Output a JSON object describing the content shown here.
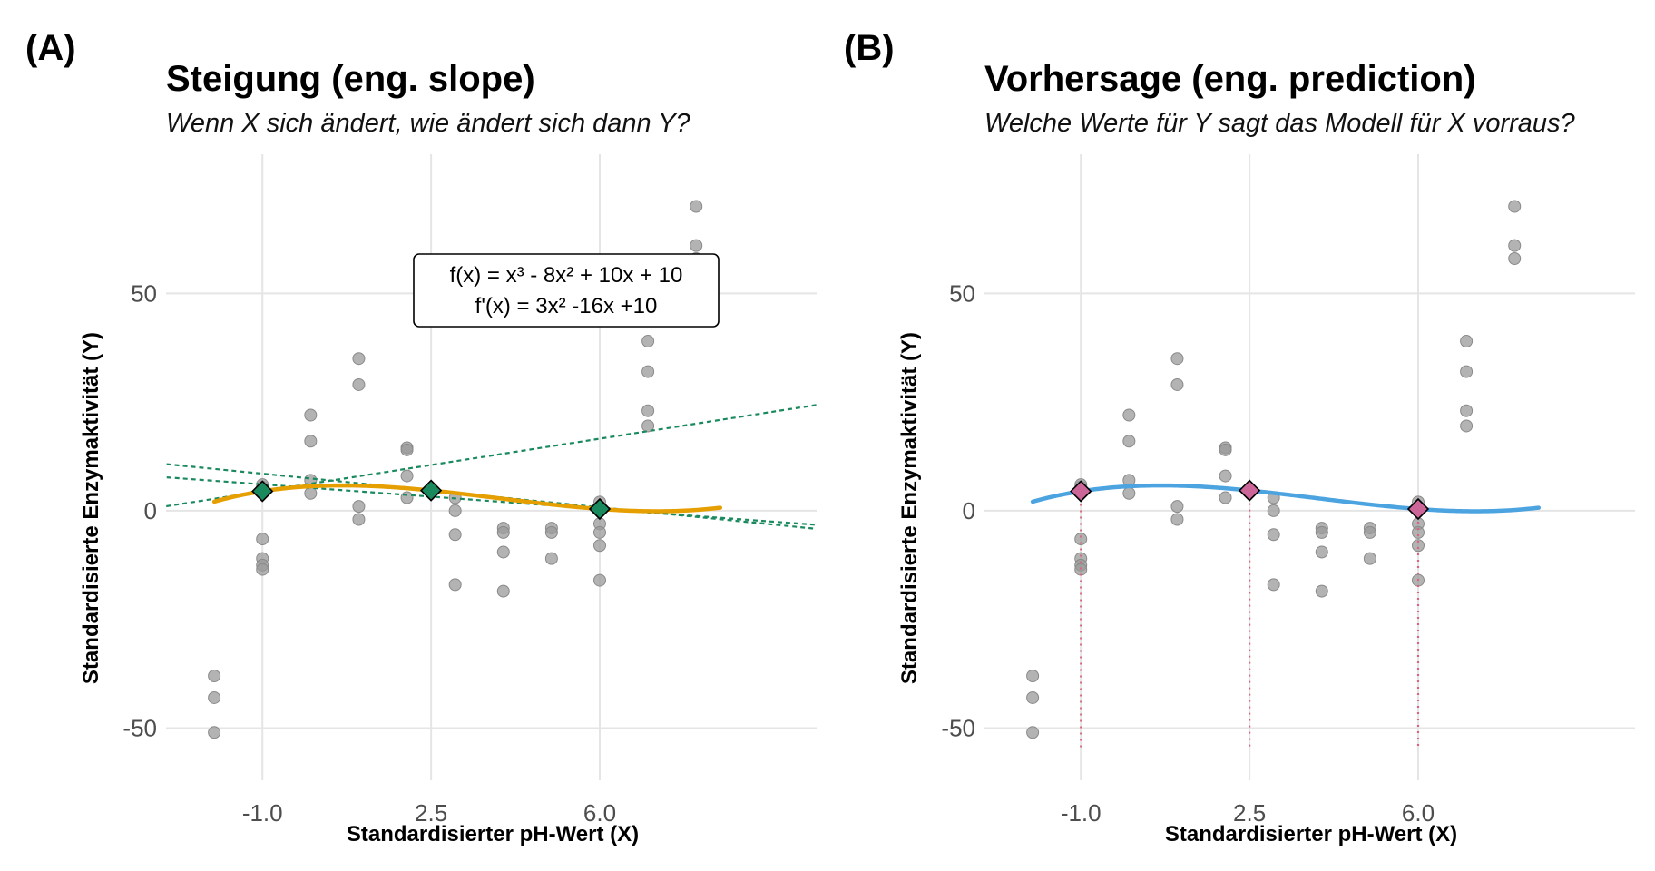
{
  "chart_data": [
    {
      "panel": "(A)",
      "type": "line",
      "title": "Steigung (eng. slope)",
      "subtitle": "Wenn X sich ändert, wie ändert sich dann Y?",
      "xlabel": "Standardisierter pH-Wert (X)",
      "ylabel": "Standardisierte Enzymaktivität (Y)",
      "xlim": [
        -3.0,
        10.5
      ],
      "ylim": [
        -62,
        82
      ],
      "xticks": [
        -1.0,
        2.5,
        6.0
      ],
      "xtick_labels": [
        "-1.0",
        "2.5",
        "6.0"
      ],
      "yticks": [
        50,
        0,
        -50
      ],
      "ytick_labels": [
        "50",
        "0",
        "-50"
      ],
      "grid": true,
      "curve_color": "#E69F00",
      "tangent_color": "#1a8a5e",
      "marker_color": "#1a8a5e",
      "annotation": [
        "f(x) = x³ - 8x² + 10x + 10",
        "f'(x) = 3x² -16x +10"
      ],
      "model": {
        "a": 0.0425,
        "b": -0.5,
        "c": 0.6,
        "d": 5.62
      },
      "curve_x_range": [
        -2.0,
        8.5
      ],
      "tangent_points": [
        -1.0,
        2.5,
        6.0
      ],
      "points": [
        {
          "x": -2.0,
          "y": -38
        },
        {
          "x": -2.0,
          "y": -43
        },
        {
          "x": -2.0,
          "y": -51
        },
        {
          "x": -1.0,
          "y": 5.5
        },
        {
          "x": -1.0,
          "y": 6
        },
        {
          "x": -1.0,
          "y": -6.5
        },
        {
          "x": -1.0,
          "y": -11
        },
        {
          "x": -1.0,
          "y": -12.5
        },
        {
          "x": -1.0,
          "y": -13.5
        },
        {
          "x": 0.0,
          "y": 22
        },
        {
          "x": 0.0,
          "y": 16
        },
        {
          "x": 0.0,
          "y": 7
        },
        {
          "x": 0.0,
          "y": 4
        },
        {
          "x": 1.0,
          "y": 35
        },
        {
          "x": 1.0,
          "y": 29
        },
        {
          "x": 1.0,
          "y": 1
        },
        {
          "x": 1.0,
          "y": -2
        },
        {
          "x": 2.0,
          "y": 14.5
        },
        {
          "x": 2.0,
          "y": 14
        },
        {
          "x": 2.0,
          "y": 8
        },
        {
          "x": 2.0,
          "y": 3
        },
        {
          "x": 3.0,
          "y": 3
        },
        {
          "x": 3.0,
          "y": 0
        },
        {
          "x": 3.0,
          "y": -5.5
        },
        {
          "x": 3.0,
          "y": -17
        },
        {
          "x": 4.0,
          "y": -4
        },
        {
          "x": 4.0,
          "y": -5
        },
        {
          "x": 4.0,
          "y": -9.5
        },
        {
          "x": 4.0,
          "y": -18.5
        },
        {
          "x": 5.0,
          "y": -4
        },
        {
          "x": 5.0,
          "y": -5
        },
        {
          "x": 5.0,
          "y": -11
        },
        {
          "x": 6.0,
          "y": 2
        },
        {
          "x": 6.0,
          "y": 0
        },
        {
          "x": 6.0,
          "y": -3
        },
        {
          "x": 6.0,
          "y": -5
        },
        {
          "x": 6.0,
          "y": -8
        },
        {
          "x": 6.0,
          "y": -16
        },
        {
          "x": 7.0,
          "y": 39
        },
        {
          "x": 7.0,
          "y": 32
        },
        {
          "x": 7.0,
          "y": 23
        },
        {
          "x": 7.0,
          "y": 19.5
        },
        {
          "x": 8.0,
          "y": 70
        },
        {
          "x": 8.0,
          "y": 61
        },
        {
          "x": 8.0,
          "y": 58
        }
      ]
    },
    {
      "panel": "(B)",
      "type": "line",
      "title": "Vorhersage (eng. prediction)",
      "subtitle": "Welche Werte für Y sagt das Modell für X vorraus?",
      "xlabel": "Standardisierter pH-Wert (X)",
      "ylabel": "Standardisierte Enzymaktivität (Y)",
      "xlim": [
        -3.0,
        10.5
      ],
      "ylim": [
        -62,
        82
      ],
      "xticks": [
        -1.0,
        2.5,
        6.0
      ],
      "xtick_labels": [
        "-1.0",
        "2.5",
        "6.0"
      ],
      "yticks": [
        50,
        0,
        -50
      ],
      "ytick_labels": [
        "50",
        "0",
        "-50"
      ],
      "grid": true,
      "curve_color": "#4BA3E0",
      "marker_color": "#CC6699",
      "dropline_color": "#D9667F",
      "model": {
        "a": 0.0425,
        "b": -0.5,
        "c": 0.6,
        "d": 5.62
      },
      "curve_x_range": [
        -2.0,
        8.5
      ],
      "prediction_points": [
        -1.0,
        2.5,
        6.0
      ],
      "points": [
        {
          "x": -2.0,
          "y": -38
        },
        {
          "x": -2.0,
          "y": -43
        },
        {
          "x": -2.0,
          "y": -51
        },
        {
          "x": -1.0,
          "y": 5.5
        },
        {
          "x": -1.0,
          "y": 6
        },
        {
          "x": -1.0,
          "y": -6.5
        },
        {
          "x": -1.0,
          "y": -11
        },
        {
          "x": -1.0,
          "y": -12.5
        },
        {
          "x": -1.0,
          "y": -13.5
        },
        {
          "x": 0.0,
          "y": 22
        },
        {
          "x": 0.0,
          "y": 16
        },
        {
          "x": 0.0,
          "y": 7
        },
        {
          "x": 0.0,
          "y": 4
        },
        {
          "x": 1.0,
          "y": 35
        },
        {
          "x": 1.0,
          "y": 29
        },
        {
          "x": 1.0,
          "y": 1
        },
        {
          "x": 1.0,
          "y": -2
        },
        {
          "x": 2.0,
          "y": 14.5
        },
        {
          "x": 2.0,
          "y": 14
        },
        {
          "x": 2.0,
          "y": 8
        },
        {
          "x": 2.0,
          "y": 3
        },
        {
          "x": 3.0,
          "y": 3
        },
        {
          "x": 3.0,
          "y": 0
        },
        {
          "x": 3.0,
          "y": -5.5
        },
        {
          "x": 3.0,
          "y": -17
        },
        {
          "x": 4.0,
          "y": -4
        },
        {
          "x": 4.0,
          "y": -5
        },
        {
          "x": 4.0,
          "y": -9.5
        },
        {
          "x": 4.0,
          "y": -18.5
        },
        {
          "x": 5.0,
          "y": -4
        },
        {
          "x": 5.0,
          "y": -5
        },
        {
          "x": 5.0,
          "y": -11
        },
        {
          "x": 6.0,
          "y": 2
        },
        {
          "x": 6.0,
          "y": 0
        },
        {
          "x": 6.0,
          "y": -3
        },
        {
          "x": 6.0,
          "y": -5
        },
        {
          "x": 6.0,
          "y": -8
        },
        {
          "x": 6.0,
          "y": -16
        },
        {
          "x": 7.0,
          "y": 39
        },
        {
          "x": 7.0,
          "y": 32
        },
        {
          "x": 7.0,
          "y": 23
        },
        {
          "x": 7.0,
          "y": 19.5
        },
        {
          "x": 8.0,
          "y": 70
        },
        {
          "x": 8.0,
          "y": 61
        },
        {
          "x": 8.0,
          "y": 58
        }
      ]
    }
  ],
  "point_color": "#999999",
  "grid_color": "#e5e5e5"
}
